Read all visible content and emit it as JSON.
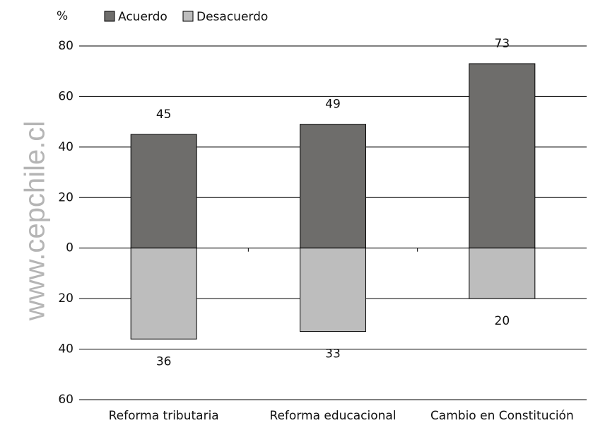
{
  "chart_data": {
    "type": "diverging-bar",
    "y_unit_label": "%",
    "watermark": "www.cepchile.cl",
    "categories": [
      "Reforma tributaria",
      "Reforma educacional",
      "Cambio en Constitución"
    ],
    "series": [
      {
        "name": "Acuerdo",
        "color": "#6e6d6b",
        "values": [
          45,
          49,
          73
        ]
      },
      {
        "name": "Desacuerdo",
        "color": "#bdbdbd",
        "values": [
          -36,
          -33,
          -20
        ],
        "value_labels": [
          "36",
          "33",
          "20"
        ]
      }
    ],
    "ylim": [
      -60,
      80
    ],
    "yticks": [
      {
        "value": -60,
        "label": "60"
      },
      {
        "value": -40,
        "label": "40"
      },
      {
        "value": -20,
        "label": "20"
      },
      0,
      20,
      40,
      60,
      80
    ],
    "grid": true
  }
}
